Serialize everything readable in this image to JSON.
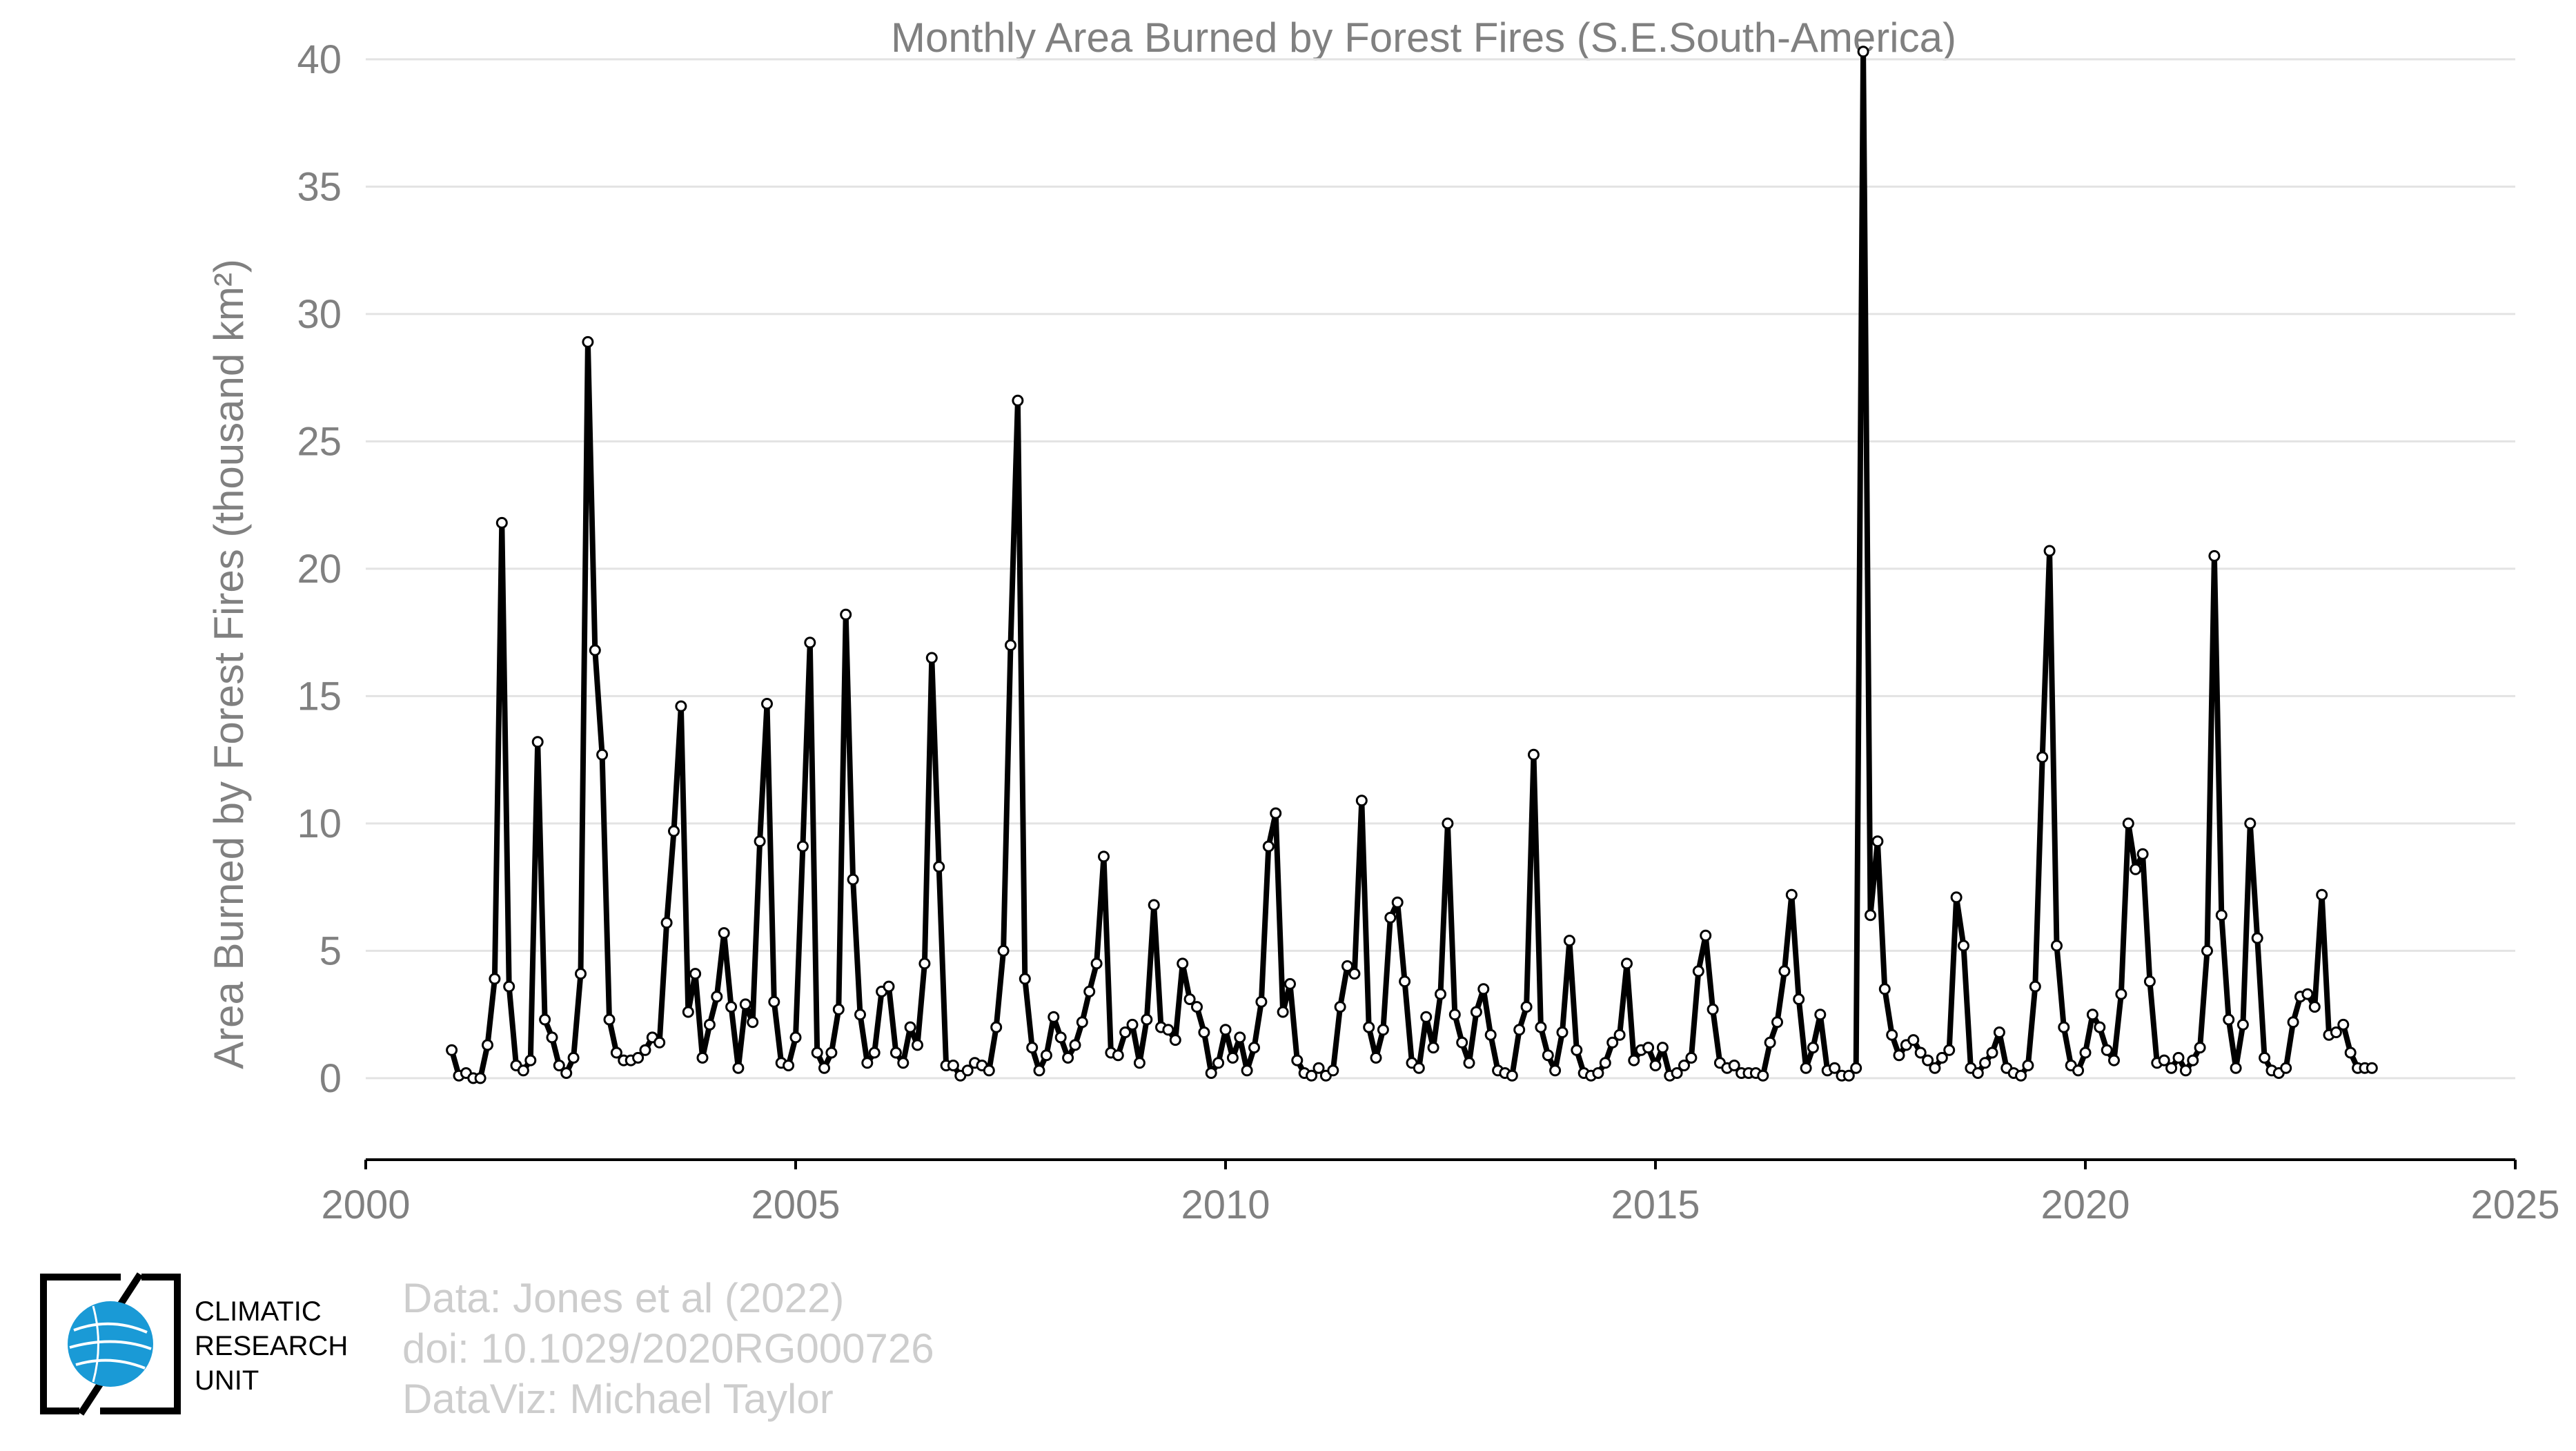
{
  "chart_data": {
    "type": "line",
    "title": "Monthly Area Burned by Forest Fires (S.E.South-America)",
    "ylabel": "Area Burned by Forest Fires (thousand km²)",
    "xlabel": "",
    "xlim": [
      2000,
      2025
    ],
    "ylim": [
      -3.2,
      40.7
    ],
    "xticks": [
      2000,
      2005,
      2010,
      2015,
      2020,
      2025
    ],
    "yticks": [
      0,
      5,
      10,
      15,
      20,
      25,
      30,
      35,
      40
    ],
    "grid": "horizontal",
    "series": [
      {
        "color": "#000000",
        "marker": "open-circle",
        "x_start": 2001.0,
        "x_step_months": 1,
        "values": [
          1.1,
          0.1,
          0.2,
          0.0,
          0.0,
          1.3,
          3.9,
          21.8,
          3.6,
          0.5,
          0.3,
          0.7,
          13.2,
          2.3,
          1.6,
          0.5,
          0.2,
          0.8,
          4.1,
          28.9,
          16.8,
          12.7,
          2.3,
          1.0,
          0.7,
          0.7,
          0.8,
          1.1,
          1.6,
          1.4,
          6.1,
          9.7,
          14.6,
          2.6,
          4.1,
          0.8,
          2.1,
          3.2,
          5.7,
          2.8,
          0.4,
          2.9,
          2.2,
          9.3,
          14.7,
          3.0,
          0.6,
          0.5,
          1.6,
          9.1,
          17.1,
          1.0,
          0.4,
          1.0,
          2.7,
          18.2,
          7.8,
          2.5,
          0.6,
          1.0,
          3.4,
          3.6,
          1.0,
          0.6,
          2.0,
          1.3,
          4.5,
          16.5,
          8.3,
          0.5,
          0.5,
          0.1,
          0.3,
          0.6,
          0.5,
          0.3,
          2.0,
          5.0,
          17.0,
          26.6,
          3.9,
          1.2,
          0.3,
          0.9,
          2.4,
          1.6,
          0.8,
          1.3,
          2.2,
          3.4,
          4.5,
          8.7,
          1.0,
          0.9,
          1.8,
          2.1,
          0.6,
          2.3,
          6.8,
          2.0,
          1.9,
          1.5,
          4.5,
          3.1,
          2.8,
          1.8,
          0.2,
          0.6,
          1.9,
          0.8,
          1.6,
          0.3,
          1.2,
          3.0,
          9.1,
          10.4,
          2.6,
          3.7,
          0.7,
          0.2,
          0.1,
          0.4,
          0.1,
          0.3,
          2.8,
          4.4,
          4.1,
          10.9,
          2.0,
          0.8,
          1.9,
          6.3,
          6.9,
          3.8,
          0.6,
          0.4,
          2.4,
          1.2,
          3.3,
          10.0,
          2.5,
          1.4,
          0.6,
          2.6,
          3.5,
          1.7,
          0.3,
          0.2,
          0.1,
          1.9,
          2.8,
          12.7,
          2.0,
          0.9,
          0.3,
          1.8,
          5.4,
          1.1,
          0.2,
          0.1,
          0.2,
          0.6,
          1.4,
          1.7,
          4.5,
          0.7,
          1.1,
          1.2,
          0.5,
          1.2,
          0.1,
          0.2,
          0.5,
          0.8,
          4.2,
          5.6,
          2.7,
          0.6,
          0.4,
          0.5,
          0.2,
          0.2,
          0.2,
          0.1,
          1.4,
          2.2,
          4.2,
          7.2,
          3.1,
          0.4,
          1.2,
          2.5,
          0.3,
          0.4,
          0.1,
          0.1,
          0.4,
          40.3,
          6.4,
          9.3,
          3.5,
          1.7,
          0.9,
          1.3,
          1.5,
          1.0,
          0.7,
          0.4,
          0.8,
          1.1,
          7.1,
          5.2,
          0.4,
          0.2,
          0.6,
          1.0,
          1.8,
          0.4,
          0.2,
          0.1,
          0.5,
          3.6,
          12.6,
          20.7,
          5.2,
          2.0,
          0.5,
          0.3,
          1.0,
          2.5,
          2.0,
          1.1,
          0.7,
          3.3,
          10.0,
          8.2,
          8.8,
          3.8,
          0.6,
          0.7,
          0.4,
          0.8,
          0.3,
          0.7,
          1.2,
          5.0,
          20.5,
          6.4,
          2.3,
          0.4,
          2.1,
          10.0,
          5.5,
          0.8,
          0.3,
          0.2,
          0.4,
          2.2,
          3.2,
          3.3,
          2.8,
          7.2,
          1.7,
          1.8,
          2.1,
          1.0,
          0.4,
          0.4,
          0.4
        ]
      }
    ]
  },
  "credits": {
    "line1": "Data: Jones et al (2022)",
    "line2": "doi: 10.1029/2020RG000726",
    "line3": "DataViz: Michael Taylor"
  },
  "logo": {
    "line1": "CLIMATIC",
    "line2": "RESEARCH",
    "line3": "UNIT",
    "color": "#1a9ad6"
  }
}
